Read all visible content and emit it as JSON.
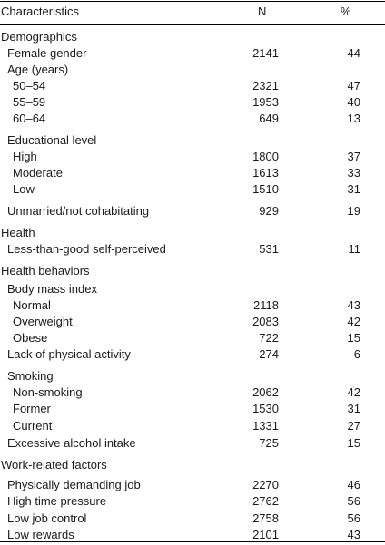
{
  "header": {
    "characteristics": "Characteristics",
    "n": "N",
    "pct": "%"
  },
  "rows": [
    {
      "label": "Demographics",
      "level": 0,
      "n": "",
      "pct": ""
    },
    {
      "label": "Female gender",
      "level": 1,
      "n": "2141",
      "pct": "44"
    },
    {
      "label": "Age (years)",
      "level": 1,
      "n": "",
      "pct": ""
    },
    {
      "label": "50–54",
      "level": 2,
      "n": "2321",
      "pct": "47"
    },
    {
      "label": "55–59",
      "level": 2,
      "n": "1953",
      "pct": "40"
    },
    {
      "label": "60–64",
      "level": 2,
      "n": "649",
      "pct": "13"
    },
    {
      "label": "Educational level",
      "level": 1,
      "n": "",
      "pct": ""
    },
    {
      "label": "High",
      "level": 2,
      "n": "1800",
      "pct": "37"
    },
    {
      "label": "Moderate",
      "level": 2,
      "n": "1613",
      "pct": "33"
    },
    {
      "label": "Low",
      "level": 2,
      "n": "1510",
      "pct": "31"
    },
    {
      "label": "Unmarried/not cohabitating",
      "level": 1,
      "n": "929",
      "pct": "19"
    },
    {
      "label": "Health",
      "level": 0,
      "n": "",
      "pct": ""
    },
    {
      "label": "Less-than-good self-perceived",
      "level": 1,
      "n": "531",
      "pct": "11"
    },
    {
      "label": "Health behaviors",
      "level": 0,
      "n": "",
      "pct": ""
    },
    {
      "label": "Body mass index",
      "level": 1,
      "n": "",
      "pct": ""
    },
    {
      "label": "Normal",
      "level": 2,
      "n": "2118",
      "pct": "43"
    },
    {
      "label": "Overweight",
      "level": 2,
      "n": "2083",
      "pct": "42"
    },
    {
      "label": "Obese",
      "level": 2,
      "n": "722",
      "pct": "15"
    },
    {
      "label": "Lack of physical activity",
      "level": 1,
      "n": "274",
      "pct": "6"
    },
    {
      "label": "Smoking",
      "level": 1,
      "n": "",
      "pct": ""
    },
    {
      "label": "Non-smoking",
      "level": 2,
      "n": "2062",
      "pct": "42"
    },
    {
      "label": "Former",
      "level": 2,
      "n": "1530",
      "pct": "31"
    },
    {
      "label": "Current",
      "level": 2,
      "n": "1331",
      "pct": "27"
    },
    {
      "label": "Excessive alcohol intake",
      "level": 1,
      "n": "725",
      "pct": "15"
    },
    {
      "label": "Work-related factors",
      "level": 0,
      "n": "",
      "pct": ""
    },
    {
      "label": "Physically demanding job",
      "level": 1,
      "n": "2270",
      "pct": "46"
    },
    {
      "label": "High time pressure",
      "level": 1,
      "n": "2762",
      "pct": "56"
    },
    {
      "label": "Low job control",
      "level": 1,
      "n": "2758",
      "pct": "56"
    },
    {
      "label": "Low rewards",
      "level": 1,
      "n": "2101",
      "pct": "43"
    }
  ]
}
